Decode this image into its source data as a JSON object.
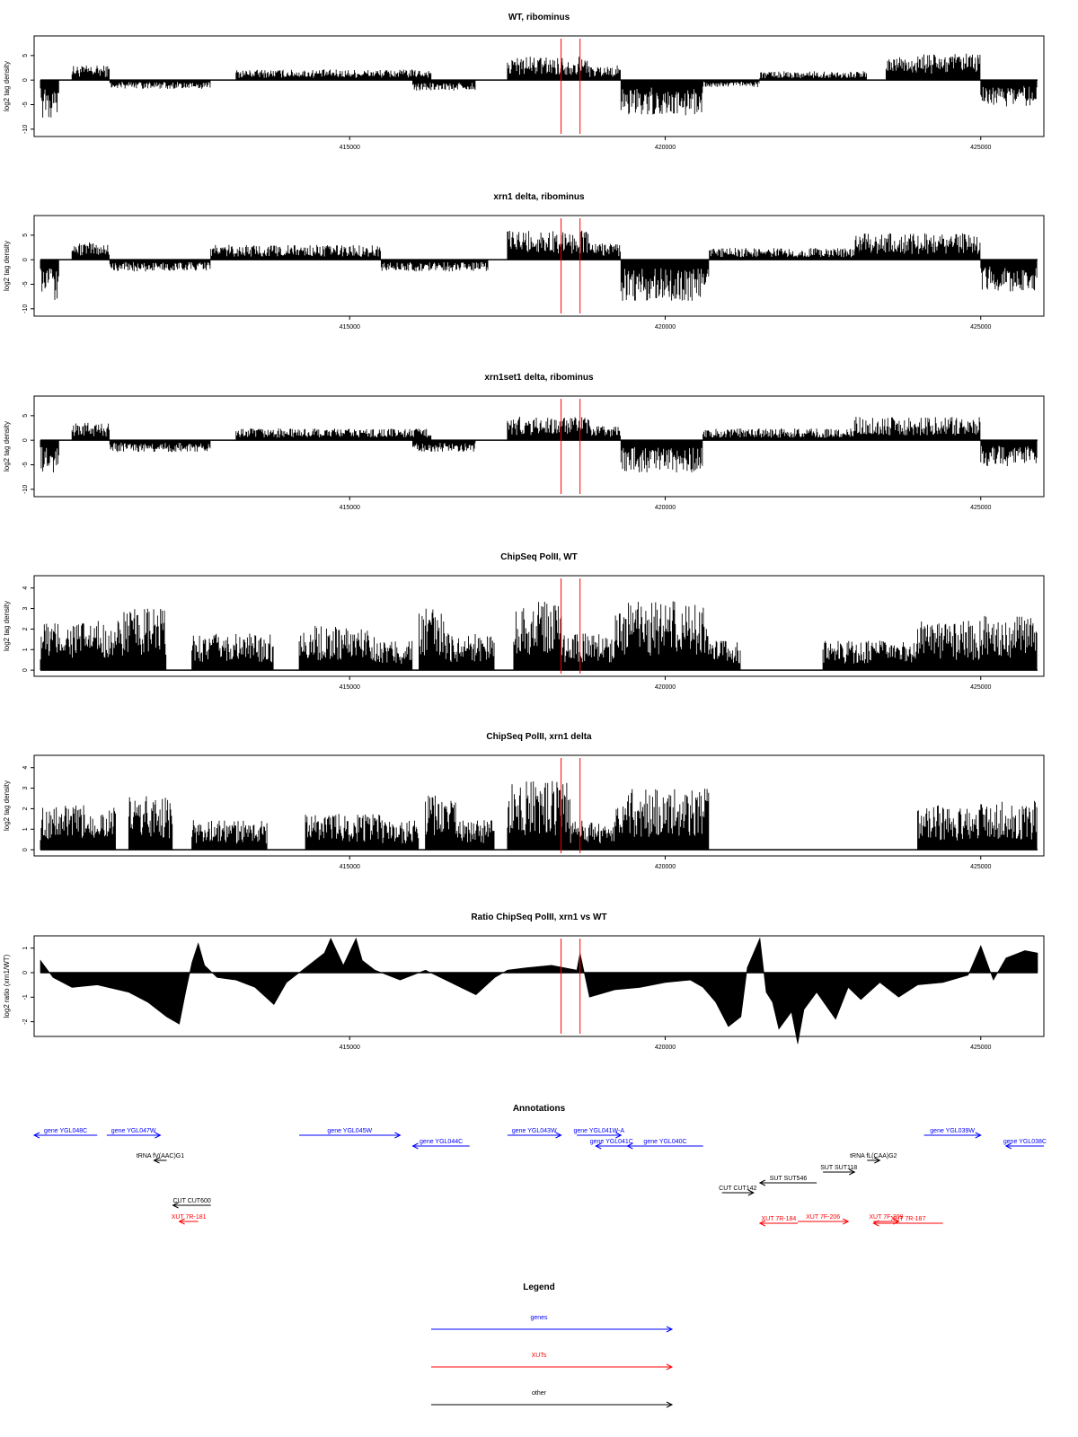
{
  "x_ticks": [
    "415000",
    "420000",
    "425000"
  ],
  "colors": {
    "data": "#000000",
    "marker": "#ff0000",
    "genes": "#0000ff",
    "xuts": "#ff0000",
    "other": "#000000"
  },
  "chart_data": [
    {
      "type": "bar",
      "title": "WT, ribominus",
      "ylabel": "log2 tag density",
      "xlim": [
        410000,
        426000
      ],
      "ylim": [
        -11.5,
        9
      ],
      "yticks": [
        "-10",
        "-5",
        "0",
        "5"
      ],
      "x_ticks": [
        415000,
        420000,
        425000
      ],
      "markers_x": [
        418350,
        418650
      ],
      "segments": [
        {
          "x": [
            410100,
            410400
          ],
          "y": -6.5
        },
        {
          "x": [
            410600,
            411200
          ],
          "y": 2.5
        },
        {
          "x": [
            411200,
            412800
          ],
          "y": -1.5
        },
        {
          "x": [
            413200,
            416300
          ],
          "y": 1.8
        },
        {
          "x": [
            416000,
            417000
          ],
          "y": -1.8
        },
        {
          "x": [
            417500,
            418800
          ],
          "y": 4
        },
        {
          "x": [
            418700,
            419300
          ],
          "y": 2.5
        },
        {
          "x": [
            419300,
            420600
          ],
          "y": -6
        },
        {
          "x": [
            420600,
            421500
          ],
          "y": -1.2
        },
        {
          "x": [
            421500,
            423200
          ],
          "y": 1.5
        },
        {
          "x": [
            423500,
            425000
          ],
          "y": 4.5
        },
        {
          "x": [
            425000,
            425900
          ],
          "y": -4.5
        }
      ]
    },
    {
      "type": "bar",
      "title": "xrn1 delta, ribominus",
      "ylabel": "log2 tag density",
      "xlim": [
        410000,
        426000
      ],
      "ylim": [
        -11.5,
        9
      ],
      "yticks": [
        "-10",
        "-5",
        "0",
        "5"
      ],
      "x_ticks": [
        415000,
        420000,
        425000
      ],
      "markers_x": [
        418350,
        418650
      ],
      "segments": [
        {
          "x": [
            410100,
            410400
          ],
          "y": -7
        },
        {
          "x": [
            410600,
            411200
          ],
          "y": 3
        },
        {
          "x": [
            411200,
            412800
          ],
          "y": -2
        },
        {
          "x": [
            412800,
            415500
          ],
          "y": 2.5
        },
        {
          "x": [
            415500,
            417200
          ],
          "y": -2
        },
        {
          "x": [
            417500,
            418800
          ],
          "y": 5
        },
        {
          "x": [
            418800,
            419300
          ],
          "y": 3
        },
        {
          "x": [
            419300,
            420700
          ],
          "y": -7
        },
        {
          "x": [
            420700,
            423200
          ],
          "y": 2
        },
        {
          "x": [
            423000,
            425000
          ],
          "y": 4.5
        },
        {
          "x": [
            425000,
            425900
          ],
          "y": -5.5
        }
      ]
    },
    {
      "type": "bar",
      "title": "xrn1set1 delta, ribominus",
      "ylabel": "log2 tag density",
      "xlim": [
        410000,
        426000
      ],
      "ylim": [
        -11.5,
        9
      ],
      "yticks": [
        "-10",
        "-5",
        "0",
        "5"
      ],
      "x_ticks": [
        415000,
        420000,
        425000
      ],
      "markers_x": [
        418350,
        418650
      ],
      "segments": [
        {
          "x": [
            410100,
            410400
          ],
          "y": -5.5
        },
        {
          "x": [
            410600,
            411200
          ],
          "y": 3
        },
        {
          "x": [
            411200,
            412800
          ],
          "y": -2
        },
        {
          "x": [
            413200,
            416300
          ],
          "y": 2
        },
        {
          "x": [
            416000,
            417000
          ],
          "y": -2
        },
        {
          "x": [
            417500,
            418800
          ],
          "y": 4
        },
        {
          "x": [
            418800,
            419300
          ],
          "y": 2.5
        },
        {
          "x": [
            419300,
            420600
          ],
          "y": -5.5
        },
        {
          "x": [
            420600,
            423000
          ],
          "y": 2
        },
        {
          "x": [
            423000,
            425000
          ],
          "y": 4
        },
        {
          "x": [
            425000,
            425900
          ],
          "y": -4.5
        }
      ]
    },
    {
      "type": "bar",
      "title": "ChipSeq PolII, WT",
      "ylabel": "log2 tag density",
      "xlim": [
        410000,
        426000
      ],
      "ylim": [
        -0.3,
        4.6
      ],
      "yticks": [
        "0",
        "1",
        "2",
        "3",
        "4"
      ],
      "x_ticks": [
        415000,
        420000,
        425000
      ],
      "markers_x": [
        418350,
        418650
      ],
      "segments": [
        {
          "x": [
            410100,
            411400
          ],
          "y": 2
        },
        {
          "x": [
            411400,
            412100
          ],
          "y": 2.5
        },
        {
          "x": [
            412500,
            413800
          ],
          "y": 1.5
        },
        {
          "x": [
            414200,
            415400
          ],
          "y": 1.8
        },
        {
          "x": [
            415400,
            416000
          ],
          "y": 1.2
        },
        {
          "x": [
            416100,
            416500
          ],
          "y": 2.5
        },
        {
          "x": [
            416500,
            417300
          ],
          "y": 1.5
        },
        {
          "x": [
            417600,
            418400
          ],
          "y": 2.8
        },
        {
          "x": [
            418400,
            419200
          ],
          "y": 1.5
        },
        {
          "x": [
            419200,
            420700
          ],
          "y": 2.8
        },
        {
          "x": [
            420700,
            421200
          ],
          "y": 1.2
        },
        {
          "x": [
            422500,
            424000
          ],
          "y": 1.2
        },
        {
          "x": [
            424000,
            425000
          ],
          "y": 2
        },
        {
          "x": [
            425000,
            425900
          ],
          "y": 2.2
        }
      ]
    },
    {
      "type": "bar",
      "title": "ChipSeq PolII, xrn1 delta",
      "ylabel": "log2 tag density",
      "xlim": [
        410000,
        426000
      ],
      "ylim": [
        -0.3,
        4.6
      ],
      "yticks": [
        "0",
        "1",
        "2",
        "3",
        "4"
      ],
      "x_ticks": [
        415000,
        420000,
        425000
      ],
      "markers_x": [
        418350,
        418650
      ],
      "segments": [
        {
          "x": [
            410100,
            411300
          ],
          "y": 1.8
        },
        {
          "x": [
            411500,
            412200
          ],
          "y": 2.2
        },
        {
          "x": [
            412500,
            413700
          ],
          "y": 1.2
        },
        {
          "x": [
            414300,
            415500
          ],
          "y": 1.5
        },
        {
          "x": [
            415500,
            416100
          ],
          "y": 1.2
        },
        {
          "x": [
            416200,
            416700
          ],
          "y": 2.2
        },
        {
          "x": [
            416700,
            417300
          ],
          "y": 1.2
        },
        {
          "x": [
            417500,
            418500
          ],
          "y": 2.8
        },
        {
          "x": [
            418500,
            419200
          ],
          "y": 1.2
        },
        {
          "x": [
            419200,
            420700
          ],
          "y": 2.5
        },
        {
          "x": [
            424000,
            425000
          ],
          "y": 1.8
        },
        {
          "x": [
            425000,
            425900
          ],
          "y": 2
        }
      ]
    },
    {
      "type": "area",
      "title": "Ratio ChipSeq PolII, xrn1 vs WT",
      "ylabel": "log2 ratio (xrn1/WT)",
      "xlim": [
        410000,
        426000
      ],
      "ylim": [
        -2.6,
        1.5
      ],
      "yticks": [
        "-2",
        "-1",
        "0",
        "1"
      ],
      "x_ticks": [
        415000,
        420000,
        425000
      ],
      "markers_x": [
        418350,
        418650
      ],
      "x": [
        410100,
        410300,
        410600,
        411000,
        411500,
        411800,
        412100,
        412300,
        412400,
        412500,
        412600,
        412700,
        412900,
        413200,
        413500,
        413800,
        414000,
        414300,
        414600,
        414700,
        414900,
        415100,
        415200,
        415400,
        415800,
        416200,
        416600,
        417000,
        417300,
        417500,
        417800,
        418200,
        418600,
        418650,
        418800,
        419200,
        419600,
        420000,
        420400,
        420600,
        420800,
        421000,
        421200,
        421300,
        421500,
        421600,
        421700,
        421800,
        422000,
        422100,
        422200,
        422400,
        422700,
        422900,
        423100,
        423400,
        423700,
        424000,
        424400,
        424800,
        425000,
        425200,
        425400,
        425700,
        425900
      ],
      "y": [
        0.5,
        -0.2,
        -0.6,
        -0.5,
        -0.8,
        -1.2,
        -1.8,
        -2.1,
        -0.8,
        0.4,
        1.2,
        0.3,
        -0.2,
        -0.3,
        -0.6,
        -1.3,
        -0.4,
        0.2,
        0.8,
        1.4,
        0.3,
        1.4,
        0.5,
        0.1,
        -0.3,
        0.1,
        -0.4,
        -0.9,
        -0.2,
        0.1,
        0.2,
        0.3,
        0.1,
        0.8,
        -1.0,
        -0.7,
        -0.6,
        -0.4,
        -0.3,
        -0.6,
        -1.2,
        -2.2,
        -1.8,
        0.2,
        1.4,
        -0.8,
        -1.2,
        -2.3,
        -1.6,
        -2.9,
        -1.5,
        -0.8,
        -1.9,
        -0.6,
        -1.1,
        -0.4,
        -1.0,
        -0.5,
        -0.4,
        -0.1,
        1.1,
        -0.3,
        0.6,
        0.9,
        0.8
      ]
    }
  ],
  "annotations": {
    "title": "Annotations",
    "xlim": [
      410000,
      426000
    ],
    "items": [
      {
        "label": "gene YGL048C",
        "kind": "genes",
        "dir": "left",
        "x": [
          410000,
          411000
        ],
        "row": 0
      },
      {
        "label": "gene YGL047W",
        "kind": "genes",
        "dir": "right",
        "x": [
          411150,
          412000
        ],
        "row": 0
      },
      {
        "label": "gene YGL045W",
        "kind": "genes",
        "dir": "right",
        "x": [
          414200,
          415800
        ],
        "row": 0
      },
      {
        "label": "gene YGL044C",
        "kind": "genes",
        "dir": "left",
        "x": [
          416000,
          416900
        ],
        "row": 1
      },
      {
        "label": "gene YGL043W",
        "kind": "genes",
        "dir": "right",
        "x": [
          417500,
          418350
        ],
        "row": 0
      },
      {
        "label": "gene YGL041W-A",
        "kind": "genes",
        "dir": "right",
        "x": [
          418600,
          419300
        ],
        "row": 0
      },
      {
        "label": "gene YGL041C",
        "kind": "genes",
        "dir": "left",
        "x": [
          418900,
          419400
        ],
        "row": 1
      },
      {
        "label": "gene YGL040C",
        "kind": "genes",
        "dir": "left",
        "x": [
          419400,
          420600
        ],
        "row": 1
      },
      {
        "label": "tRNA fV(AAC)G1",
        "kind": "other",
        "dir": "left",
        "x": [
          411900,
          412100
        ],
        "row": 2
      },
      {
        "label": "tRNA fL(CAA)G2",
        "kind": "other",
        "dir": "right",
        "x": [
          423200,
          423400
        ],
        "row": 2
      },
      {
        "label": "SUT SUT118",
        "kind": "other",
        "dir": "right",
        "x": [
          422500,
          423000
        ],
        "row": 3
      },
      {
        "label": "SUT SUT546",
        "kind": "other",
        "dir": "left",
        "x": [
          421500,
          422400
        ],
        "row": 4
      },
      {
        "label": "CUT CUT142",
        "kind": "other",
        "dir": "right",
        "x": [
          420900,
          421400
        ],
        "row": 5
      },
      {
        "label": "CUT CUT600",
        "kind": "other",
        "dir": "left",
        "x": [
          412200,
          412800
        ],
        "row": 6
      },
      {
        "label": "XUT 7R-181",
        "kind": "xuts",
        "dir": "left",
        "x": [
          412300,
          412600
        ],
        "row": 7
      },
      {
        "label": "XUT 7F-206",
        "kind": "xuts",
        "dir": "right",
        "x": [
          422100,
          422900
        ],
        "row": 7
      },
      {
        "label": "XUT 7R-184",
        "kind": "xuts",
        "dir": "left",
        "x": [
          421500,
          422100
        ],
        "row": 8
      },
      {
        "label": "XUT 7F-209",
        "kind": "xuts",
        "dir": "right",
        "x": [
          423300,
          423700
        ],
        "row": 7
      },
      {
        "label": "XUT 7R-187",
        "kind": "xuts",
        "dir": "left",
        "x": [
          423300,
          424400
        ],
        "row": 8
      },
      {
        "label": "gene YGL039W",
        "kind": "genes",
        "dir": "right",
        "x": [
          424100,
          425000
        ],
        "row": 0
      },
      {
        "label": "gene YGL038C",
        "kind": "genes",
        "dir": "left",
        "x": [
          425400,
          426000
        ],
        "row": 1
      }
    ]
  },
  "legend": {
    "title": "Legend",
    "items": [
      {
        "label": "genes",
        "kind": "genes"
      },
      {
        "label": "XUTs",
        "kind": "xuts"
      },
      {
        "label": "other",
        "kind": "other"
      }
    ]
  }
}
